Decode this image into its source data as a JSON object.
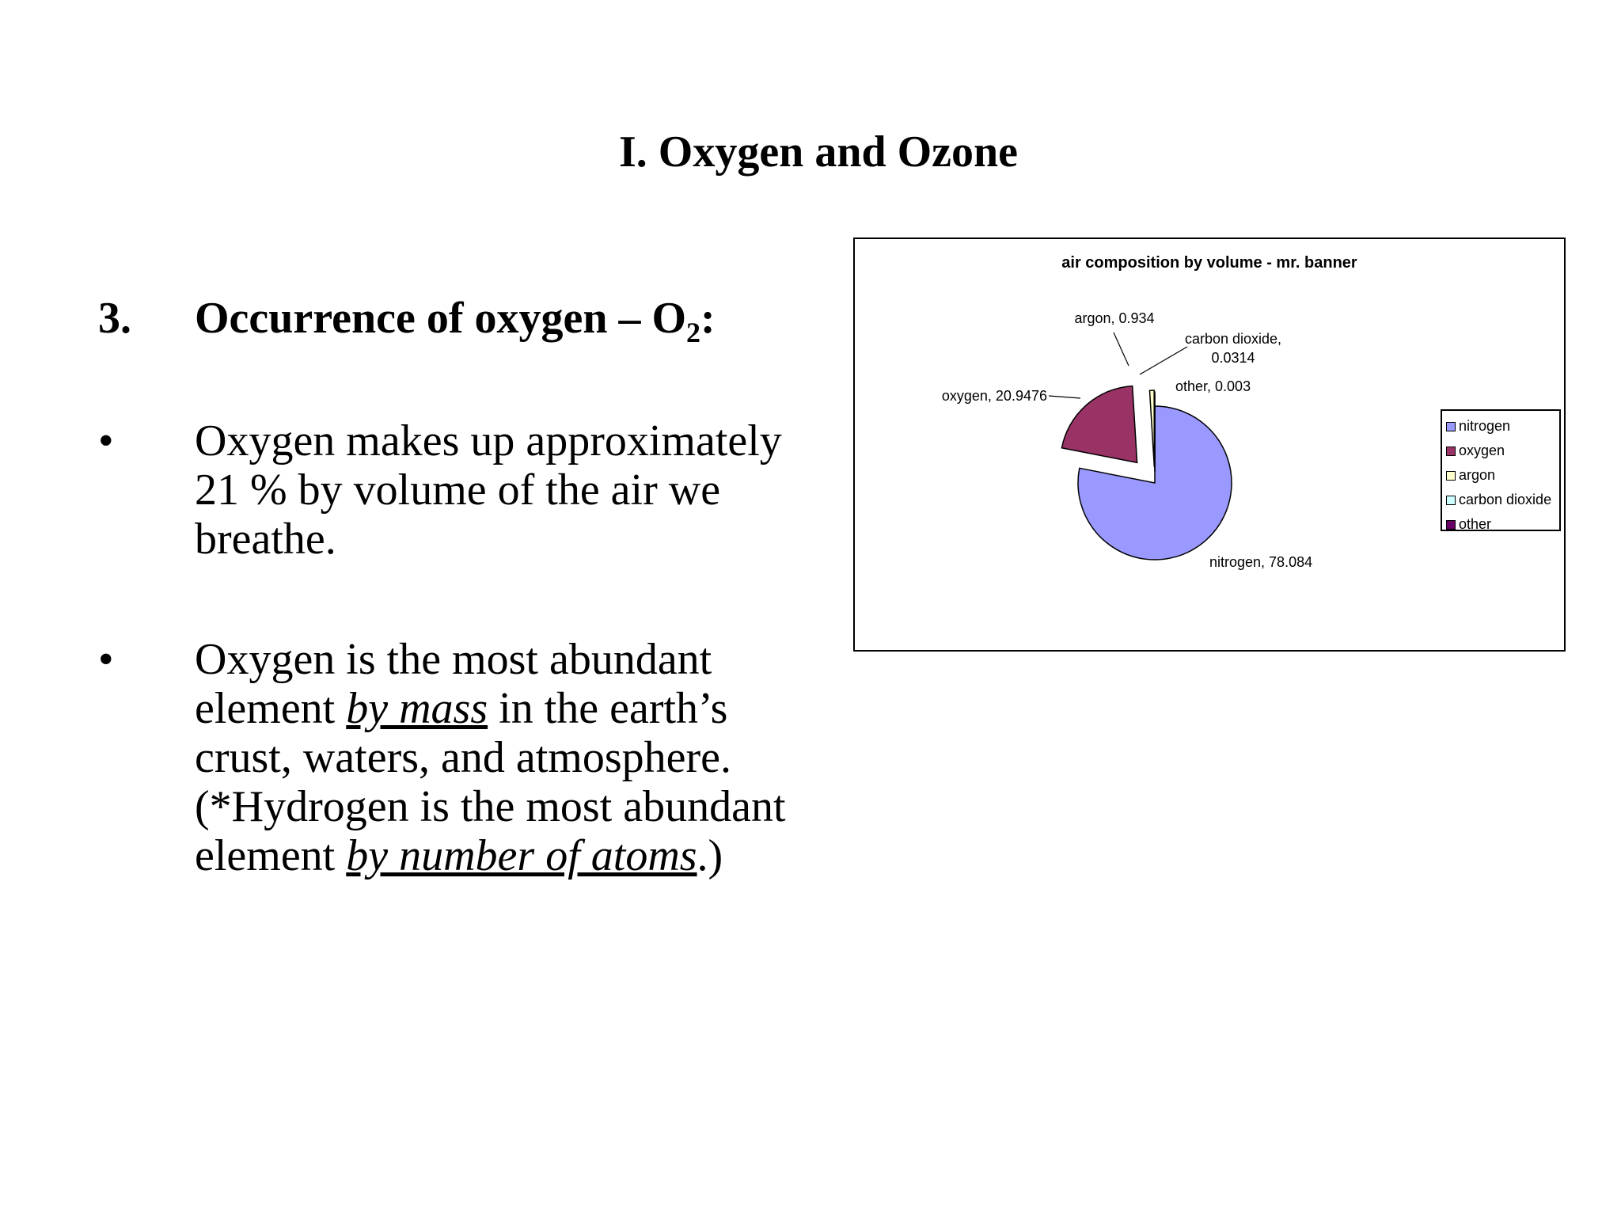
{
  "slide": {
    "title": "I. Oxygen and Ozone",
    "heading_num": "3.",
    "heading_text": "Occurrence of oxygen – O",
    "heading_sub": "2",
    "heading_end": ":",
    "bullet_char": "•",
    "bullet1": "Oxygen makes up approximately 21 % by volume of the air we breathe.",
    "bullet2": {
      "a": "Oxygen is the most abundant element ",
      "b": "by mass",
      "c": " in the earth’s crust, waters, and atmosphere. (*Hydrogen is the most abundant element ",
      "d": "by number of atoms",
      "e": ".)"
    }
  },
  "chart_data": {
    "type": "pie",
    "title": "air composition by volume - mr. banner",
    "slices": [
      {
        "name": "nitrogen",
        "value": 78.084,
        "label": "nitrogen, 78.084",
        "color": "#9999ff"
      },
      {
        "name": "oxygen",
        "value": 20.9476,
        "label": "oxygen, 20.9476",
        "color": "#993366"
      },
      {
        "name": "argon",
        "value": 0.934,
        "label": "argon, 0.934",
        "color": "#ffffcc"
      },
      {
        "name": "carbon dioxide",
        "value": 0.0314,
        "label": "carbon dioxide, 0.0314",
        "label_lines": [
          "carbon dioxide,",
          "0.0314"
        ],
        "color": "#ccffff"
      },
      {
        "name": "other",
        "value": 0.003,
        "label": "other, 0.003",
        "color": "#660066"
      }
    ],
    "exploded": true,
    "legend_position": "right"
  }
}
